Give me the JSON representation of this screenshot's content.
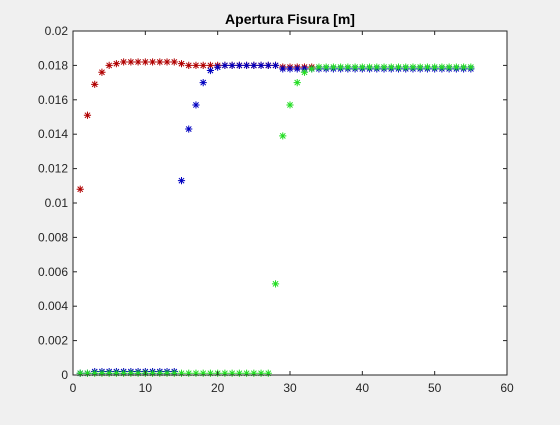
{
  "chart_data": {
    "type": "scatter",
    "title": "Apertura Fisura [m]",
    "xlabel": "",
    "ylabel": "",
    "xlim": [
      0,
      60
    ],
    "ylim": [
      0,
      0.02
    ],
    "xticks": [
      0,
      10,
      20,
      30,
      40,
      50,
      60
    ],
    "yticks": [
      0,
      0.002,
      0.004,
      0.006,
      0.008,
      0.01,
      0.012,
      0.014,
      0.016,
      0.018,
      0.02
    ],
    "ytick_labels": [
      "0",
      "0.002",
      "0.004",
      "0.006",
      "0.008",
      "0.01",
      "0.012",
      "0.014",
      "0.016",
      "0.018",
      "0.02"
    ],
    "grid": false,
    "legend": "none",
    "marker": "asterisk",
    "series": [
      {
        "color": "#b00000",
        "x": [
          1,
          2,
          3,
          4,
          5,
          6,
          7,
          8,
          9,
          10,
          11,
          12,
          13,
          14,
          15,
          16,
          17,
          18,
          19,
          20,
          21,
          22,
          23,
          24,
          25,
          26,
          27,
          28,
          29,
          30,
          31,
          32,
          33
        ],
        "y": [
          0.0108,
          0.0151,
          0.0169,
          0.0176,
          0.018,
          0.0181,
          0.0182,
          0.0182,
          0.0182,
          0.0182,
          0.0182,
          0.0182,
          0.0182,
          0.0182,
          0.0181,
          0.018,
          0.018,
          0.018,
          0.018,
          0.018,
          0.018,
          0.018,
          0.018,
          0.018,
          0.018,
          0.018,
          0.018,
          0.018,
          0.0179,
          0.0179,
          0.0179,
          0.0179,
          0.0179
        ]
      },
      {
        "color": "#0000c0",
        "x": [
          1,
          2,
          3,
          4,
          5,
          6,
          7,
          8,
          9,
          10,
          11,
          12,
          13,
          14,
          15,
          16,
          17,
          18,
          19,
          20,
          21,
          22,
          23,
          24,
          25,
          26,
          27,
          28,
          29,
          30,
          31,
          32,
          33,
          34,
          35,
          36,
          37,
          38,
          39,
          40,
          41,
          42,
          43,
          44,
          45,
          46,
          47,
          48,
          49,
          50,
          51,
          52,
          53,
          54,
          55
        ],
        "y": [
          0.0001,
          0.0001,
          0.0002,
          0.0002,
          0.0002,
          0.0002,
          0.0002,
          0.0002,
          0.0002,
          0.0002,
          0.0002,
          0.0002,
          0.0002,
          0.0002,
          0.0113,
          0.0143,
          0.0157,
          0.017,
          0.0177,
          0.0179,
          0.018,
          0.018,
          0.018,
          0.018,
          0.018,
          0.018,
          0.018,
          0.018,
          0.0178,
          0.0178,
          0.0178,
          0.0178,
          0.0178,
          0.0178,
          0.0178,
          0.0178,
          0.0178,
          0.0178,
          0.0178,
          0.0178,
          0.0178,
          0.0178,
          0.0178,
          0.0178,
          0.0178,
          0.0178,
          0.0178,
          0.0178,
          0.0178,
          0.0178,
          0.0178,
          0.0178,
          0.0178,
          0.0178,
          0.0178
        ]
      },
      {
        "color": "#22dd22",
        "x": [
          1,
          2,
          3,
          4,
          5,
          6,
          7,
          8,
          9,
          10,
          11,
          12,
          13,
          14,
          15,
          16,
          17,
          18,
          19,
          20,
          21,
          22,
          23,
          24,
          25,
          26,
          27,
          28,
          29,
          30,
          31,
          32,
          33,
          34,
          35,
          36,
          37,
          38,
          39,
          40,
          41,
          42,
          43,
          44,
          45,
          46,
          47,
          48,
          49,
          50,
          51,
          52,
          53,
          54,
          55
        ],
        "y": [
          0.0001,
          0.0001,
          0.0001,
          0.0001,
          0.0001,
          0.0001,
          0.0001,
          0.0001,
          0.0001,
          0.0001,
          0.0001,
          0.0001,
          0.0001,
          0.0001,
          0.0001,
          0.0001,
          0.0001,
          0.0001,
          0.0001,
          0.0001,
          0.0001,
          0.0001,
          0.0001,
          0.0001,
          0.0001,
          0.0001,
          0.0001,
          0.0053,
          0.0139,
          0.0157,
          0.017,
          0.0176,
          0.0178,
          0.0179,
          0.0179,
          0.0179,
          0.0179,
          0.0179,
          0.0179,
          0.0179,
          0.0179,
          0.0179,
          0.0179,
          0.0179,
          0.0179,
          0.0179,
          0.0179,
          0.0179,
          0.0179,
          0.0179,
          0.0179,
          0.0179,
          0.0179,
          0.0179,
          0.0179
        ]
      }
    ]
  }
}
